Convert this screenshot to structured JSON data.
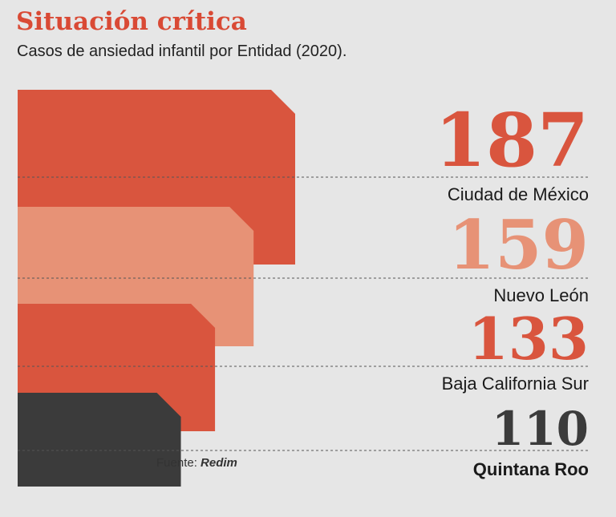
{
  "header": {
    "title": "Situación crítica",
    "subtitle": "Casos de ansiedad infantil por Entidad (2020)."
  },
  "source": {
    "label": "Fuente:",
    "name": "Redim"
  },
  "colors": {
    "dark_red": "#d9553e",
    "light_salmon": "#e79276",
    "dark_gray": "#3b3b3b",
    "background": "#e6e6e6"
  },
  "chart_data": {
    "type": "bar",
    "title": "Situación crítica",
    "subtitle": "Casos de ansiedad infantil por Entidad (2020).",
    "categories": [
      "Ciudad de México",
      "Nuevo León",
      "Baja California Sur",
      "Quintana Roo"
    ],
    "values": [
      187,
      159,
      133,
      110
    ],
    "bar_colors": [
      "#d9553e",
      "#e79276",
      "#d9553e",
      "#3b3b3b"
    ],
    "value_colors": [
      "#d9553e",
      "#e79276",
      "#d9553e",
      "#3b3b3b"
    ],
    "orientation": "horizontal",
    "grid": false,
    "legend": "none"
  }
}
